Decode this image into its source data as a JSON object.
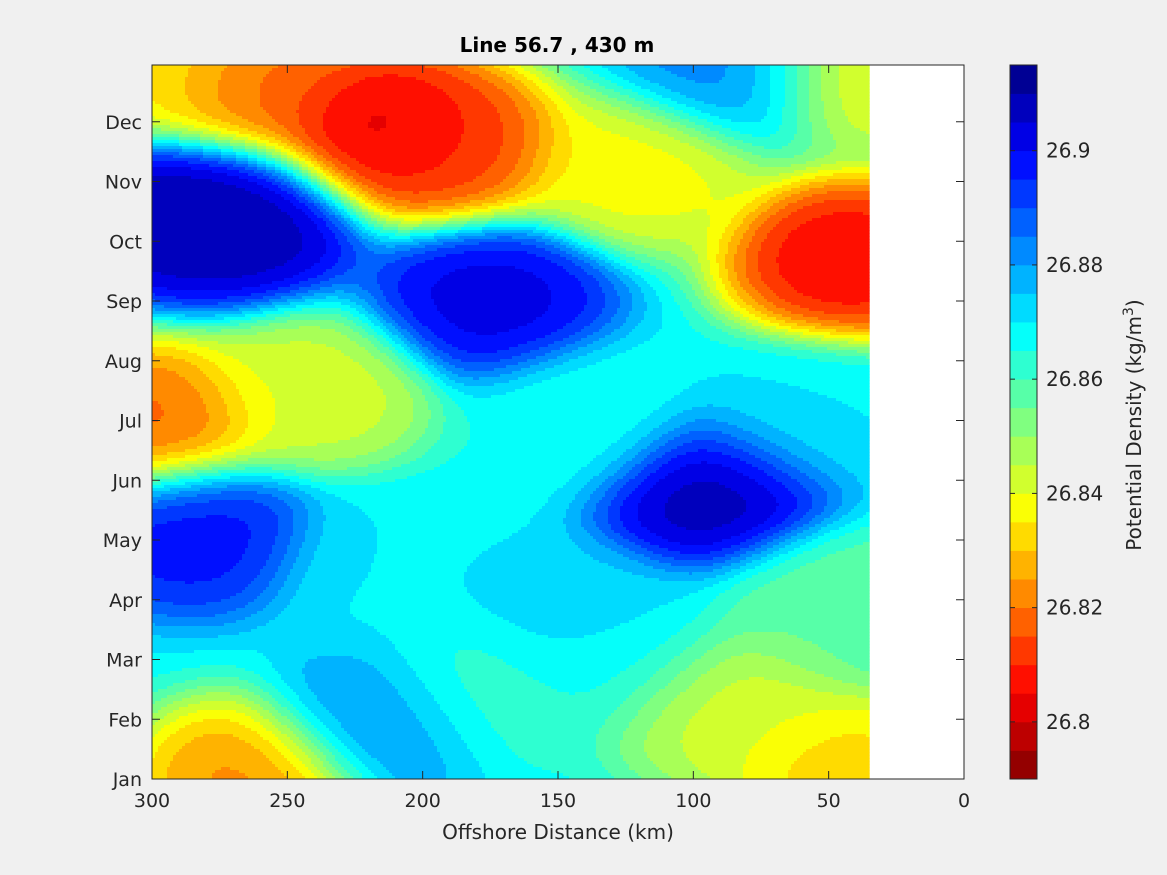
{
  "chart_data": {
    "type": "heatmap",
    "title": "Line 56.7 , 430 m",
    "xlabel": "Offshore Distance (km)",
    "ylabel": "",
    "xlim": [
      300,
      0
    ],
    "x_reversed": true,
    "xticks": [
      300,
      250,
      200,
      150,
      100,
      50,
      0
    ],
    "yticks": [
      "Jan",
      "Feb",
      "Mar",
      "Apr",
      "May",
      "Jun",
      "Jul",
      "Aug",
      "Sep",
      "Oct",
      "Nov",
      "Dec"
    ],
    "data_extent_x": [
      300,
      35
    ],
    "colorbar": {
      "label": "Potential Density (kg/m",
      "label_superscript": "3",
      "label_suffix": ")",
      "range": [
        26.79,
        26.915
      ],
      "ticks": [
        26.8,
        26.82,
        26.84,
        26.86,
        26.88,
        26.9
      ],
      "tick_labels": [
        "26.8",
        "26.82",
        "26.84",
        "26.86",
        "26.88",
        "26.9"
      ],
      "levels": 25,
      "colormap": "jet"
    },
    "features": [
      {
        "x": 215,
        "y": 10.9,
        "value": 26.797
      },
      {
        "x": 190,
        "y": 10.6,
        "value": 26.81
      },
      {
        "x": 262,
        "y": 11.6,
        "value": 26.815
      },
      {
        "x": 43,
        "y": 8.7,
        "value": 26.8
      },
      {
        "x": 300,
        "y": 6.0,
        "value": 26.815
      },
      {
        "x": 120,
        "y": 10.2,
        "value": 26.835
      },
      {
        "x": 295,
        "y": 9.5,
        "value": 26.912
      },
      {
        "x": 268,
        "y": 9.3,
        "value": 26.912
      },
      {
        "x": 175,
        "y": 8.0,
        "value": 26.905
      },
      {
        "x": 92,
        "y": 4.8,
        "value": 26.912
      },
      {
        "x": 285,
        "y": 4.1,
        "value": 26.9
      },
      {
        "x": 240,
        "y": 6.5,
        "value": 26.84
      },
      {
        "x": 90,
        "y": 1.2,
        "value": 26.84
      },
      {
        "x": 45,
        "y": 0.1,
        "value": 26.83
      },
      {
        "x": 262,
        "y": 0.0,
        "value": 26.82
      },
      {
        "x": 85,
        "y": 11.9,
        "value": 26.885
      },
      {
        "x": 215,
        "y": 0.9,
        "value": 26.885
      },
      {
        "x": 140,
        "y": 2.6,
        "value": 26.875
      },
      {
        "x": 180,
        "y": 1.4,
        "value": 26.86
      },
      {
        "x": 300,
        "y": 11.9,
        "value": 26.835
      },
      {
        "x": 40,
        "y": 11.9,
        "value": 26.835
      },
      {
        "x": 50,
        "y": 3.0,
        "value": 26.855
      },
      {
        "x": 140,
        "y": 6.0,
        "value": 26.865
      },
      {
        "x": 130,
        "y": 2.0,
        "value": 26.865
      },
      {
        "x": 210,
        "y": 3.5,
        "value": 26.87
      },
      {
        "x": 60,
        "y": 6.0,
        "value": 26.87
      }
    ],
    "background_value": 26.868
  }
}
